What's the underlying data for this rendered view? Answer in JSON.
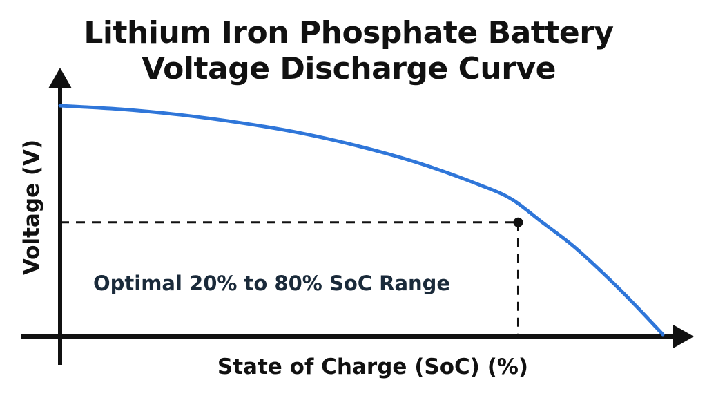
{
  "title_line1": "Lithium Iron Phosphate Battery",
  "title_line2": "Voltage Discharge Curve",
  "chart_data": {
    "type": "line",
    "xlabel": "State of Charge (SoC) (%)",
    "ylabel": "Voltage (V)",
    "annotation": "Optimal 20% to 80% SoC Range",
    "series": [
      {
        "x": [
          0,
          10,
          20,
          30,
          40,
          50,
          60,
          70,
          75,
          80,
          85,
          90,
          95,
          100
        ],
        "y": [
          1.0,
          0.985,
          0.96,
          0.925,
          0.88,
          0.82,
          0.745,
          0.65,
          0.59,
          0.49,
          0.39,
          0.27,
          0.14,
          0.0
        ],
        "color": "#2f76d9"
      }
    ],
    "marker": {
      "x": 76,
      "y": 0.49
    },
    "grid": false,
    "ticks": false
  }
}
